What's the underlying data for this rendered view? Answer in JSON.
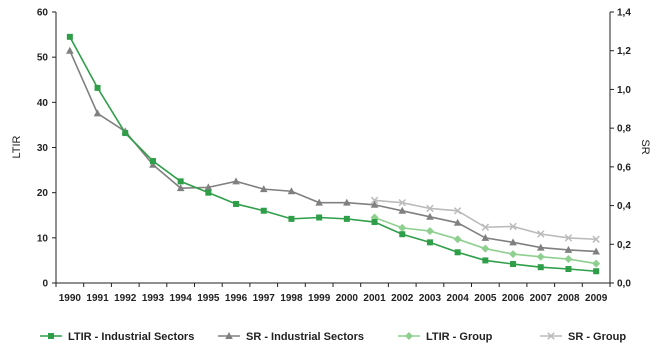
{
  "chart_data": {
    "type": "line",
    "x": [
      "1990",
      "1991",
      "1992",
      "1993",
      "1994",
      "1995",
      "1996",
      "1997",
      "1998",
      "1999",
      "2000",
      "2001",
      "2002",
      "2003",
      "2004",
      "2005",
      "2006",
      "2007",
      "2008",
      "2009"
    ],
    "ylabel": "LTIR",
    "y2label": "SR",
    "ylim": [
      0,
      60
    ],
    "y2lim": [
      0,
      1.4
    ],
    "yticks": [
      "0",
      "10",
      "20",
      "30",
      "40",
      "50",
      "60"
    ],
    "y2ticks": [
      "0,0",
      "0,2",
      "0,4",
      "0,6",
      "0,8",
      "1,0",
      "1,2",
      "1,4"
    ],
    "grid": false,
    "legend_position": "bottom",
    "series": [
      {
        "name": "LTIR - Industrial Sectors",
        "axis": "left",
        "color": "#2e9e48",
        "marker": "square",
        "values": [
          54.5,
          43.2,
          33.2,
          27.0,
          22.5,
          20.0,
          17.5,
          16.0,
          14.2,
          14.5,
          14.2,
          13.5,
          10.8,
          9.0,
          6.8,
          5.0,
          4.2,
          3.5,
          3.1,
          2.6
        ]
      },
      {
        "name": "SR - Industrial Sectors",
        "axis": "right",
        "color": "#808080",
        "marker": "triangle",
        "values": [
          1.2,
          0.876,
          0.783,
          0.611,
          0.49,
          0.494,
          0.525,
          0.485,
          0.474,
          0.415,
          0.415,
          0.404,
          0.373,
          0.342,
          0.311,
          0.233,
          0.21,
          0.183,
          0.171,
          0.163
        ]
      },
      {
        "name": "LTIR - Group",
        "axis": "left",
        "color": "#8fcf8f",
        "marker": "diamond",
        "values": [
          null,
          null,
          null,
          null,
          null,
          null,
          null,
          null,
          null,
          null,
          null,
          14.5,
          12.2,
          11.5,
          9.7,
          7.6,
          6.4,
          5.8,
          5.3,
          4.3
        ]
      },
      {
        "name": "SR - Group",
        "axis": "right",
        "color": "#bbbbbb",
        "marker": "x",
        "values": [
          null,
          null,
          null,
          null,
          null,
          null,
          null,
          null,
          null,
          null,
          null,
          0.427,
          0.415,
          0.385,
          0.373,
          0.288,
          0.292,
          0.253,
          0.233,
          0.226
        ]
      }
    ]
  },
  "colors": {
    "axis": "#222222"
  }
}
